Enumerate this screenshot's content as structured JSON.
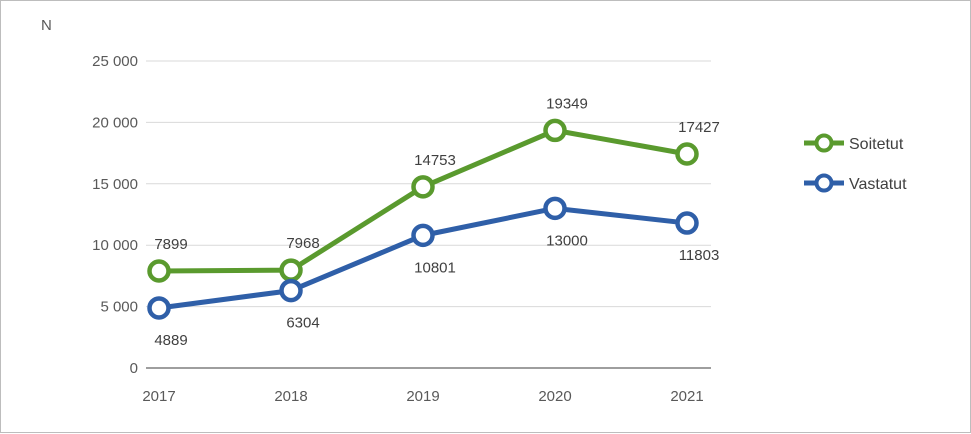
{
  "chart_data": {
    "type": "line",
    "ylabel": "N",
    "xlabel": "",
    "categories": [
      "2017",
      "2018",
      "2019",
      "2020",
      "2021"
    ],
    "ylim": [
      0,
      25000
    ],
    "y_ticks": [
      0,
      5000,
      10000,
      15000,
      20000,
      25000
    ],
    "y_tick_labels": [
      "0",
      "5 000",
      "10 000",
      "15 000",
      "20 000",
      "25 000"
    ],
    "grid": true,
    "legend_position": "right",
    "series": [
      {
        "name": "Soitetut",
        "color": "#5a9a2e",
        "values": [
          7899,
          7968,
          14753,
          19349,
          17427
        ],
        "labels": [
          "7899",
          "7968",
          "14753",
          "19349",
          "17427"
        ],
        "label_side": "above"
      },
      {
        "name": "Vastatut",
        "color": "#2f5fa8",
        "values": [
          4889,
          6304,
          10801,
          13000,
          11803
        ],
        "labels": [
          "4889",
          "6304",
          "10801",
          "13000",
          "11803"
        ],
        "label_side": "below"
      }
    ]
  }
}
